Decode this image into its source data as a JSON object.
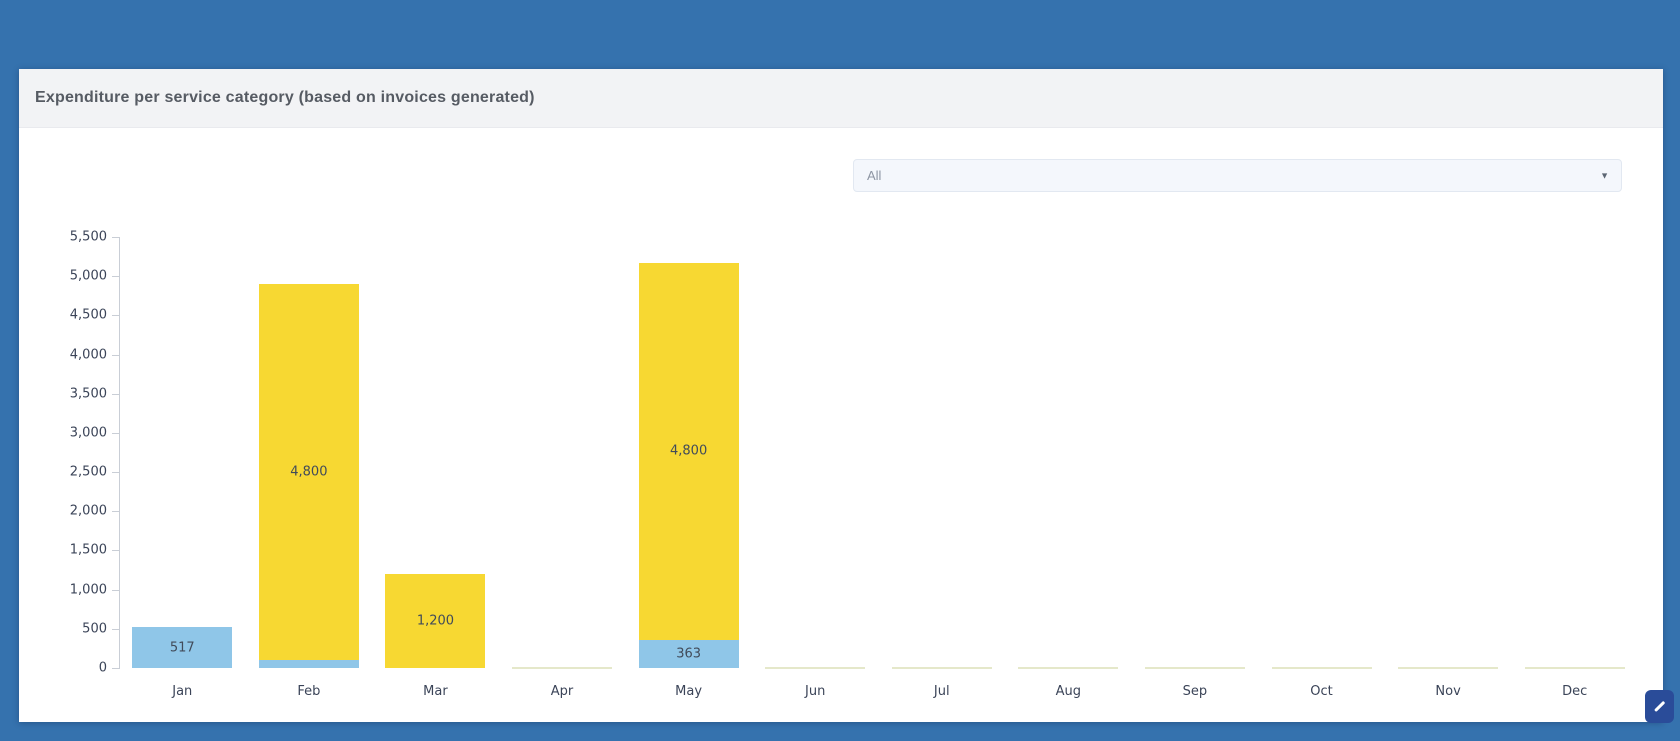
{
  "window": {
    "background_color": "#3572ae"
  },
  "card": {
    "title": "Expenditure per service category (based on invoices generated)",
    "header_bg": "#f2f3f5"
  },
  "filter": {
    "value": "All",
    "icon": "chevron-down"
  },
  "corner_button": {
    "icon": "pencil-diagonal",
    "color": "#2a4c99"
  },
  "chart_data": {
    "type": "bar",
    "stacked": true,
    "title": "Expenditure per service category (based on invoices generated)",
    "xlabel": "",
    "ylabel": "",
    "categories": [
      "Jan",
      "Feb",
      "Mar",
      "Apr",
      "May",
      "Jun",
      "Jul",
      "Aug",
      "Sep",
      "Oct",
      "Nov",
      "Dec"
    ],
    "series": [
      {
        "name": "blue",
        "color": "#8fc6e8",
        "values": [
          517,
          100,
          0,
          0,
          363,
          0,
          0,
          0,
          0,
          0,
          0,
          0
        ]
      },
      {
        "name": "yellow",
        "color": "#f7d832",
        "values": [
          0,
          4800,
          1200,
          0,
          4800,
          0,
          0,
          0,
          0,
          0,
          0,
          0
        ]
      }
    ],
    "bar_labels": [
      {
        "category": "Jan",
        "series": 0,
        "text": "517"
      },
      {
        "category": "Feb",
        "series": 1,
        "text": "4,800"
      },
      {
        "category": "Mar",
        "series": 1,
        "text": "1,200"
      },
      {
        "category": "May",
        "series": 1,
        "text": "4,800"
      },
      {
        "category": "May",
        "series": 0,
        "text": "363"
      }
    ],
    "ylim": [
      0,
      5500
    ],
    "ytick_step": 500,
    "ytick_labels": [
      "0",
      "500",
      "1,000",
      "1,500",
      "2,000",
      "2,500",
      "3,000",
      "3,500",
      "4,000",
      "4,500",
      "5,000",
      "5,500"
    ],
    "legend": "none",
    "grid": false,
    "zero_value_marker_color": "#e5e8ca",
    "axis_color": "#c9ced6",
    "label_color": "#3b4458"
  }
}
